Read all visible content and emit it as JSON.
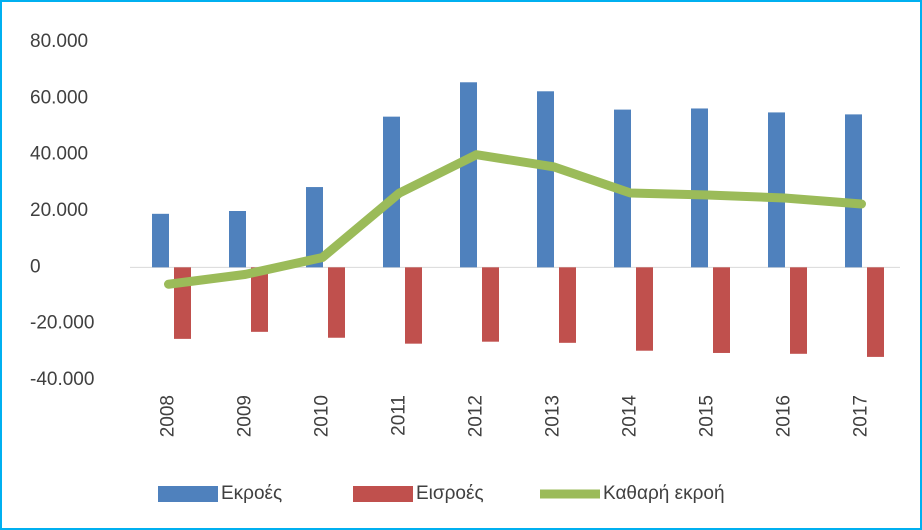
{
  "chart_data": {
    "type": "bar_line",
    "categories": [
      "2008",
      "2009",
      "2010",
      "2011",
      "2012",
      "2013",
      "2014",
      "2015",
      "2016",
      "2017"
    ],
    "series": [
      {
        "name": "Εκροές",
        "color": "#4f81bd",
        "type": "bar",
        "values": [
          19000,
          20000,
          28500,
          53500,
          65700,
          62500,
          56000,
          56400,
          55000,
          54300
        ]
      },
      {
        "name": "Εισροές",
        "color": "#c0504d",
        "type": "bar",
        "values": [
          -25400,
          -22900,
          -25000,
          -27100,
          -26400,
          -26800,
          -29600,
          -30400,
          -30700,
          -31800
        ]
      },
      {
        "name": "Καθαρή εκροή",
        "color": "#9bbb59",
        "type": "line",
        "values": [
          -6000,
          -2500,
          3500,
          26400,
          40000,
          35700,
          26400,
          25700,
          24600,
          22500
        ]
      }
    ],
    "ylim": [
      -40000,
      80000
    ],
    "yticks": [
      {
        "value": -40000,
        "label": "-40.000"
      },
      {
        "value": -20000,
        "label": "-20.000"
      },
      0,
      {
        "value": 20000,
        "label": "20.000"
      },
      {
        "value": 40000,
        "label": "40.000"
      },
      {
        "value": 60000,
        "label": "60.000"
      },
      {
        "value": 80000,
        "label": "80.000"
      }
    ],
    "grid": false,
    "legend": "bottom"
  }
}
